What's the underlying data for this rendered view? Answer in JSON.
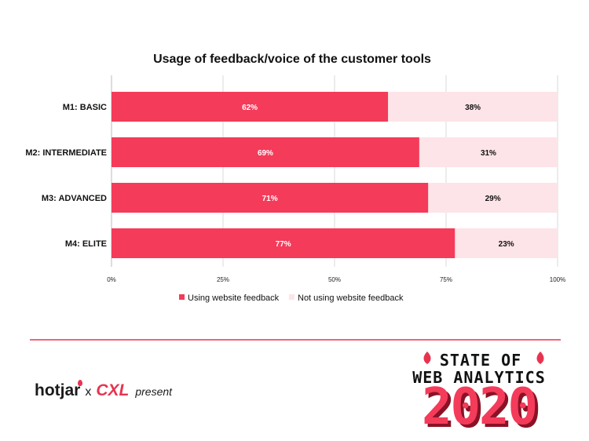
{
  "colors": {
    "using": "#f43b5a",
    "not_using": "#fde4e8",
    "grid": "#d9d9d9",
    "divider": "#f0657a",
    "accent": "#e8334f",
    "year_fill": "#f43b5a",
    "year_shadow": "#8a1226"
  },
  "chart_data": {
    "type": "bar",
    "orientation": "horizontal",
    "stacked": true,
    "title": "Usage of feedback/voice of the customer tools",
    "categories": [
      "M1: BASIC",
      "M2: INTERMEDIATE",
      "M3: ADVANCED",
      "M4: ELITE"
    ],
    "series": [
      {
        "name": "Using website feedback",
        "values": [
          62,
          69,
          71,
          77
        ],
        "labels": [
          "62%",
          "69%",
          "71%",
          "77%"
        ]
      },
      {
        "name": "Not using website feedback",
        "values": [
          38,
          31,
          29,
          23
        ],
        "labels": [
          "38%",
          "31%",
          "29%",
          "23%"
        ]
      }
    ],
    "xlim": [
      0,
      100
    ],
    "xticks": [
      0,
      25,
      50,
      75,
      100
    ],
    "xtick_labels": [
      "0%",
      "25%",
      "50%",
      "75%",
      "100%"
    ],
    "grid": true,
    "legend": "bottom"
  },
  "footer": {
    "brand_hotjar": "hotjar",
    "brand_x": "x",
    "brand_cxl": "CXL",
    "brand_present": "present",
    "badge_line1": "STATE OF",
    "badge_line2": "WEB ANALYTICS",
    "badge_year": "2020"
  }
}
